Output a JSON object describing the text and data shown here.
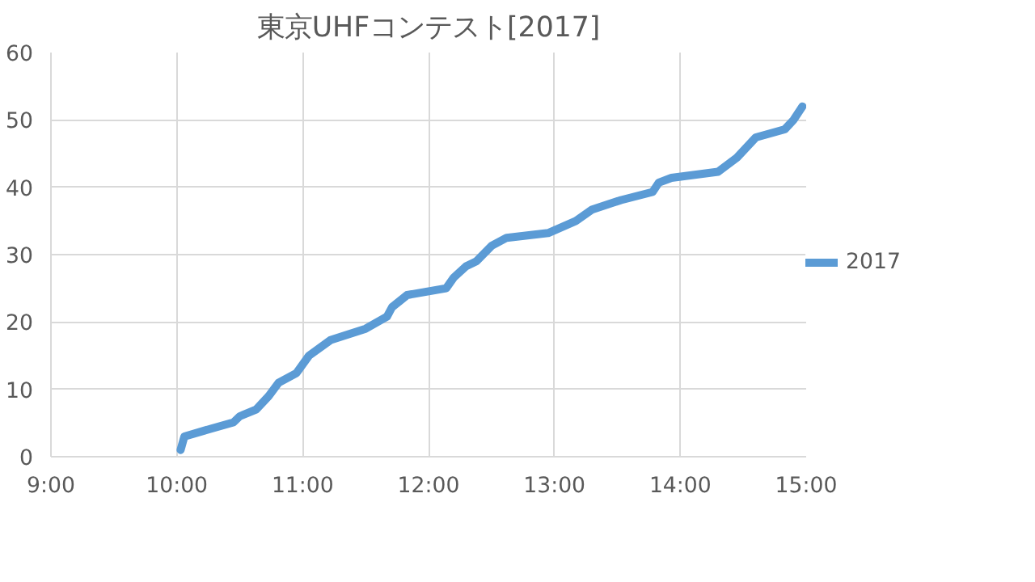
{
  "chart_data": {
    "type": "line",
    "title": "東京UHFコンテスト[2017]",
    "x": [
      10.03,
      10.06,
      10.28,
      10.45,
      10.5,
      10.63,
      10.73,
      10.81,
      10.95,
      11.05,
      11.22,
      11.5,
      11.67,
      11.71,
      11.83,
      12.14,
      12.2,
      12.3,
      12.38,
      12.5,
      12.62,
      12.95,
      13.17,
      13.3,
      13.53,
      13.78,
      13.83,
      13.93,
      14.3,
      14.45,
      14.51,
      14.6,
      14.83,
      14.9,
      14.97
    ],
    "series": [
      {
        "name": "2017",
        "color": "#5b9bd5",
        "values": [
          1,
          3,
          4.2,
          5.1,
          6,
          7,
          9,
          11,
          12.4,
          15,
          17.3,
          19,
          20.8,
          22.2,
          24,
          25,
          26.6,
          28.3,
          29,
          31.3,
          32.5,
          33.2,
          35,
          36.7,
          38.1,
          39.3,
          40.7,
          41.4,
          42.3,
          44.4,
          45.6,
          47.4,
          48.6,
          50,
          52
        ]
      }
    ],
    "xlim": [
      9,
      15
    ],
    "xticks": [
      {
        "value": 9,
        "label": "9:00"
      },
      {
        "value": 10,
        "label": "10:00"
      },
      {
        "value": 11,
        "label": "11:00"
      },
      {
        "value": 12,
        "label": "12:00"
      },
      {
        "value": 13,
        "label": "13:00"
      },
      {
        "value": 14,
        "label": "14:00"
      },
      {
        "value": 15,
        "label": "15:00"
      }
    ],
    "ylim": [
      0,
      60
    ],
    "yticks": [
      0,
      10,
      20,
      30,
      40,
      50,
      60
    ],
    "grid": true,
    "legend": "right",
    "line_style": "solid"
  }
}
